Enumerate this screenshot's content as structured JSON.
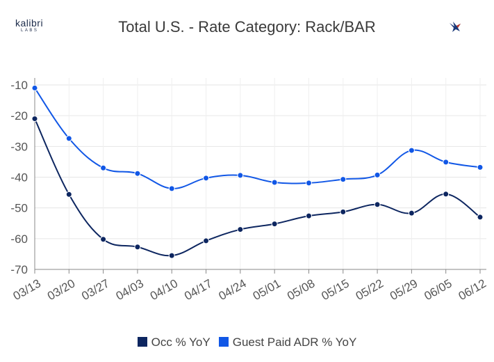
{
  "header": {
    "logo_name": "kalibri",
    "logo_sub": "LABS",
    "brand_icon": "bird-icon"
  },
  "chart_data": {
    "type": "line",
    "title": "Total U.S. - Rate Category: Rack/BAR",
    "xlabel": "",
    "ylabel": "",
    "categories": [
      "03/13",
      "03/20",
      "03/27",
      "04/03",
      "04/10",
      "04/17",
      "04/24",
      "05/01",
      "05/08",
      "05/15",
      "05/22",
      "05/29",
      "06/05",
      "06/12"
    ],
    "ylim": [
      -70,
      -10
    ],
    "yticks": [
      -10,
      -20,
      -30,
      -40,
      -50,
      -60,
      -70
    ],
    "grid": true,
    "legend_position": "bottom",
    "series": [
      {
        "name": "Occ % YoY",
        "color": "#0d2660",
        "values": [
          -21,
          -45.6,
          -60.2,
          -62.7,
          -65.5,
          -60.7,
          -57,
          -55.2,
          -52.6,
          -51.3,
          -48.9,
          -51.7,
          -45.5,
          -53
        ]
      },
      {
        "name": "Guest Paid ADR % YoY",
        "color": "#1157e6",
        "values": [
          -11,
          -27.4,
          -37,
          -38.8,
          -43.7,
          -40.3,
          -39.4,
          -41.7,
          -41.9,
          -40.7,
          -39.3,
          -31.3,
          -35.1,
          -36.8
        ]
      }
    ]
  }
}
